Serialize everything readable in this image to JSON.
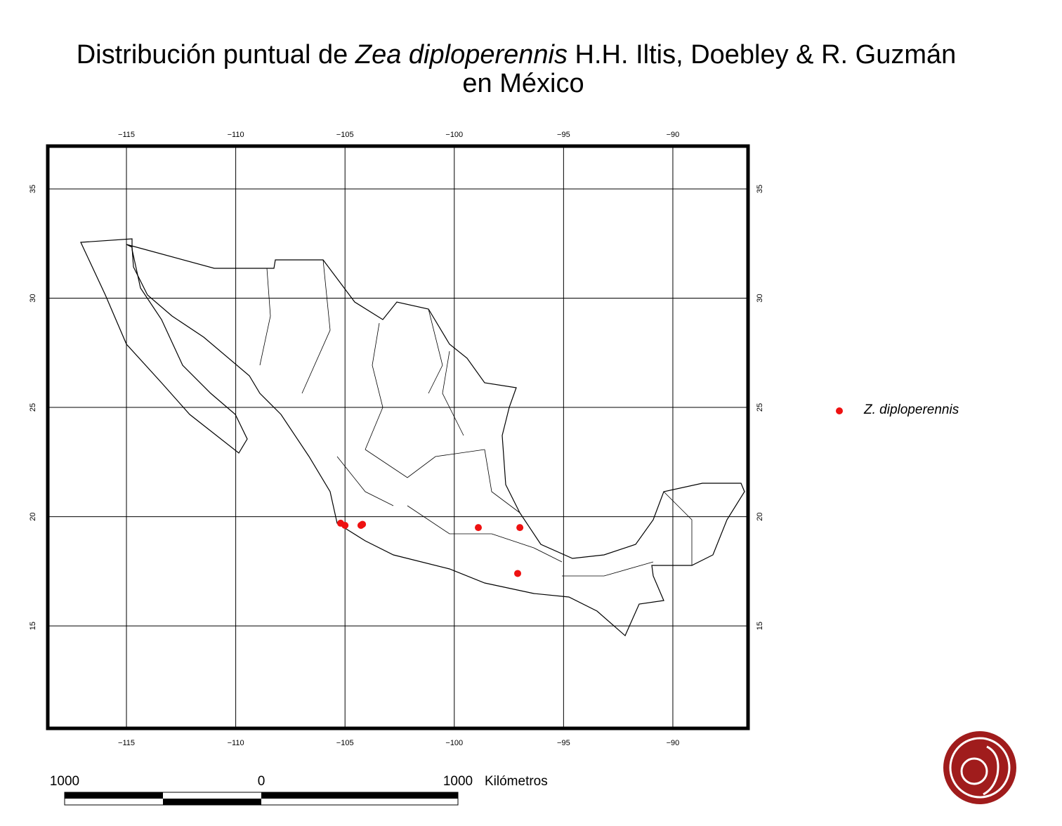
{
  "chart_data": {
    "type": "scatter",
    "title": [
      "Distribución puntual de ",
      "Zea diploperennis",
      " H.H. Iltis, Doebley & R. Guzmán",
      "en México"
    ],
    "x": [
      -105.2,
      -105.0,
      -104.27,
      -104.2,
      -98.9,
      -97.0,
      -97.1
    ],
    "series": [
      {
        "name": "Z. diploperennis",
        "color": "#ee1111",
        "values": [
          19.7,
          19.6,
          19.6,
          19.65,
          19.5,
          19.5,
          17.4
        ]
      }
    ],
    "xlim": [
      -118.6,
      -86.56
    ],
    "ylim": [
      10.31,
      36.96
    ],
    "xticks": [
      {
        "value": -115,
        "label": "−115"
      },
      {
        "value": -110,
        "label": "−110"
      },
      {
        "value": -105,
        "label": "−105"
      },
      {
        "value": -100,
        "label": "−100"
      },
      {
        "value": -95,
        "label": "−95"
      },
      {
        "value": -90,
        "label": "−90"
      }
    ],
    "yticks": [
      15,
      20,
      25,
      30,
      35
    ],
    "grid": true,
    "scale_bar": {
      "labels": [
        "1000",
        "0",
        "1000"
      ],
      "unit": "Kilómetros"
    }
  }
}
